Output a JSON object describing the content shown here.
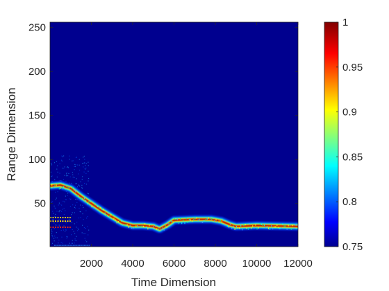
{
  "chart_data": {
    "type": "heatmap",
    "title": "",
    "xlabel": "Time Dimension",
    "ylabel": "Range Dimension",
    "xlim": [
      0,
      12000
    ],
    "ylim": [
      1,
      256
    ],
    "xticks": [
      2000,
      4000,
      6000,
      8000,
      10000,
      12000
    ],
    "yticks": [
      50,
      100,
      150,
      200,
      250
    ],
    "colormap": "jet",
    "clim": [
      0.75,
      1
    ],
    "colorbar_ticks": [
      0.75,
      0.8,
      0.85,
      0.9,
      0.95,
      1
    ],
    "background_value": 0.75,
    "colors": {
      "low": "#00008f",
      "high": "#800000"
    },
    "series": [
      {
        "values": [
          [
            0,
            70
          ],
          [
            500,
            71
          ],
          [
            1000,
            67
          ],
          [
            1500,
            58
          ],
          [
            2000,
            50
          ],
          [
            2500,
            42
          ],
          [
            3000,
            35
          ],
          [
            3500,
            28
          ],
          [
            4000,
            25
          ],
          [
            4500,
            25
          ],
          [
            5000,
            24
          ],
          [
            5300,
            21
          ],
          [
            5700,
            26
          ],
          [
            6000,
            31
          ],
          [
            7000,
            32
          ],
          [
            7800,
            32
          ],
          [
            8300,
            30
          ],
          [
            8700,
            26
          ],
          [
            9000,
            24
          ],
          [
            10000,
            25
          ],
          [
            12000,
            24
          ]
        ]
      },
      {
        "values": [
          [
            0,
            34
          ],
          [
            1000,
            34
          ]
        ]
      },
      {
        "values": [
          [
            0,
            30
          ],
          [
            1000,
            30
          ]
        ]
      },
      {
        "values": [
          [
            0,
            23
          ],
          [
            1000,
            23
          ]
        ]
      }
    ]
  }
}
